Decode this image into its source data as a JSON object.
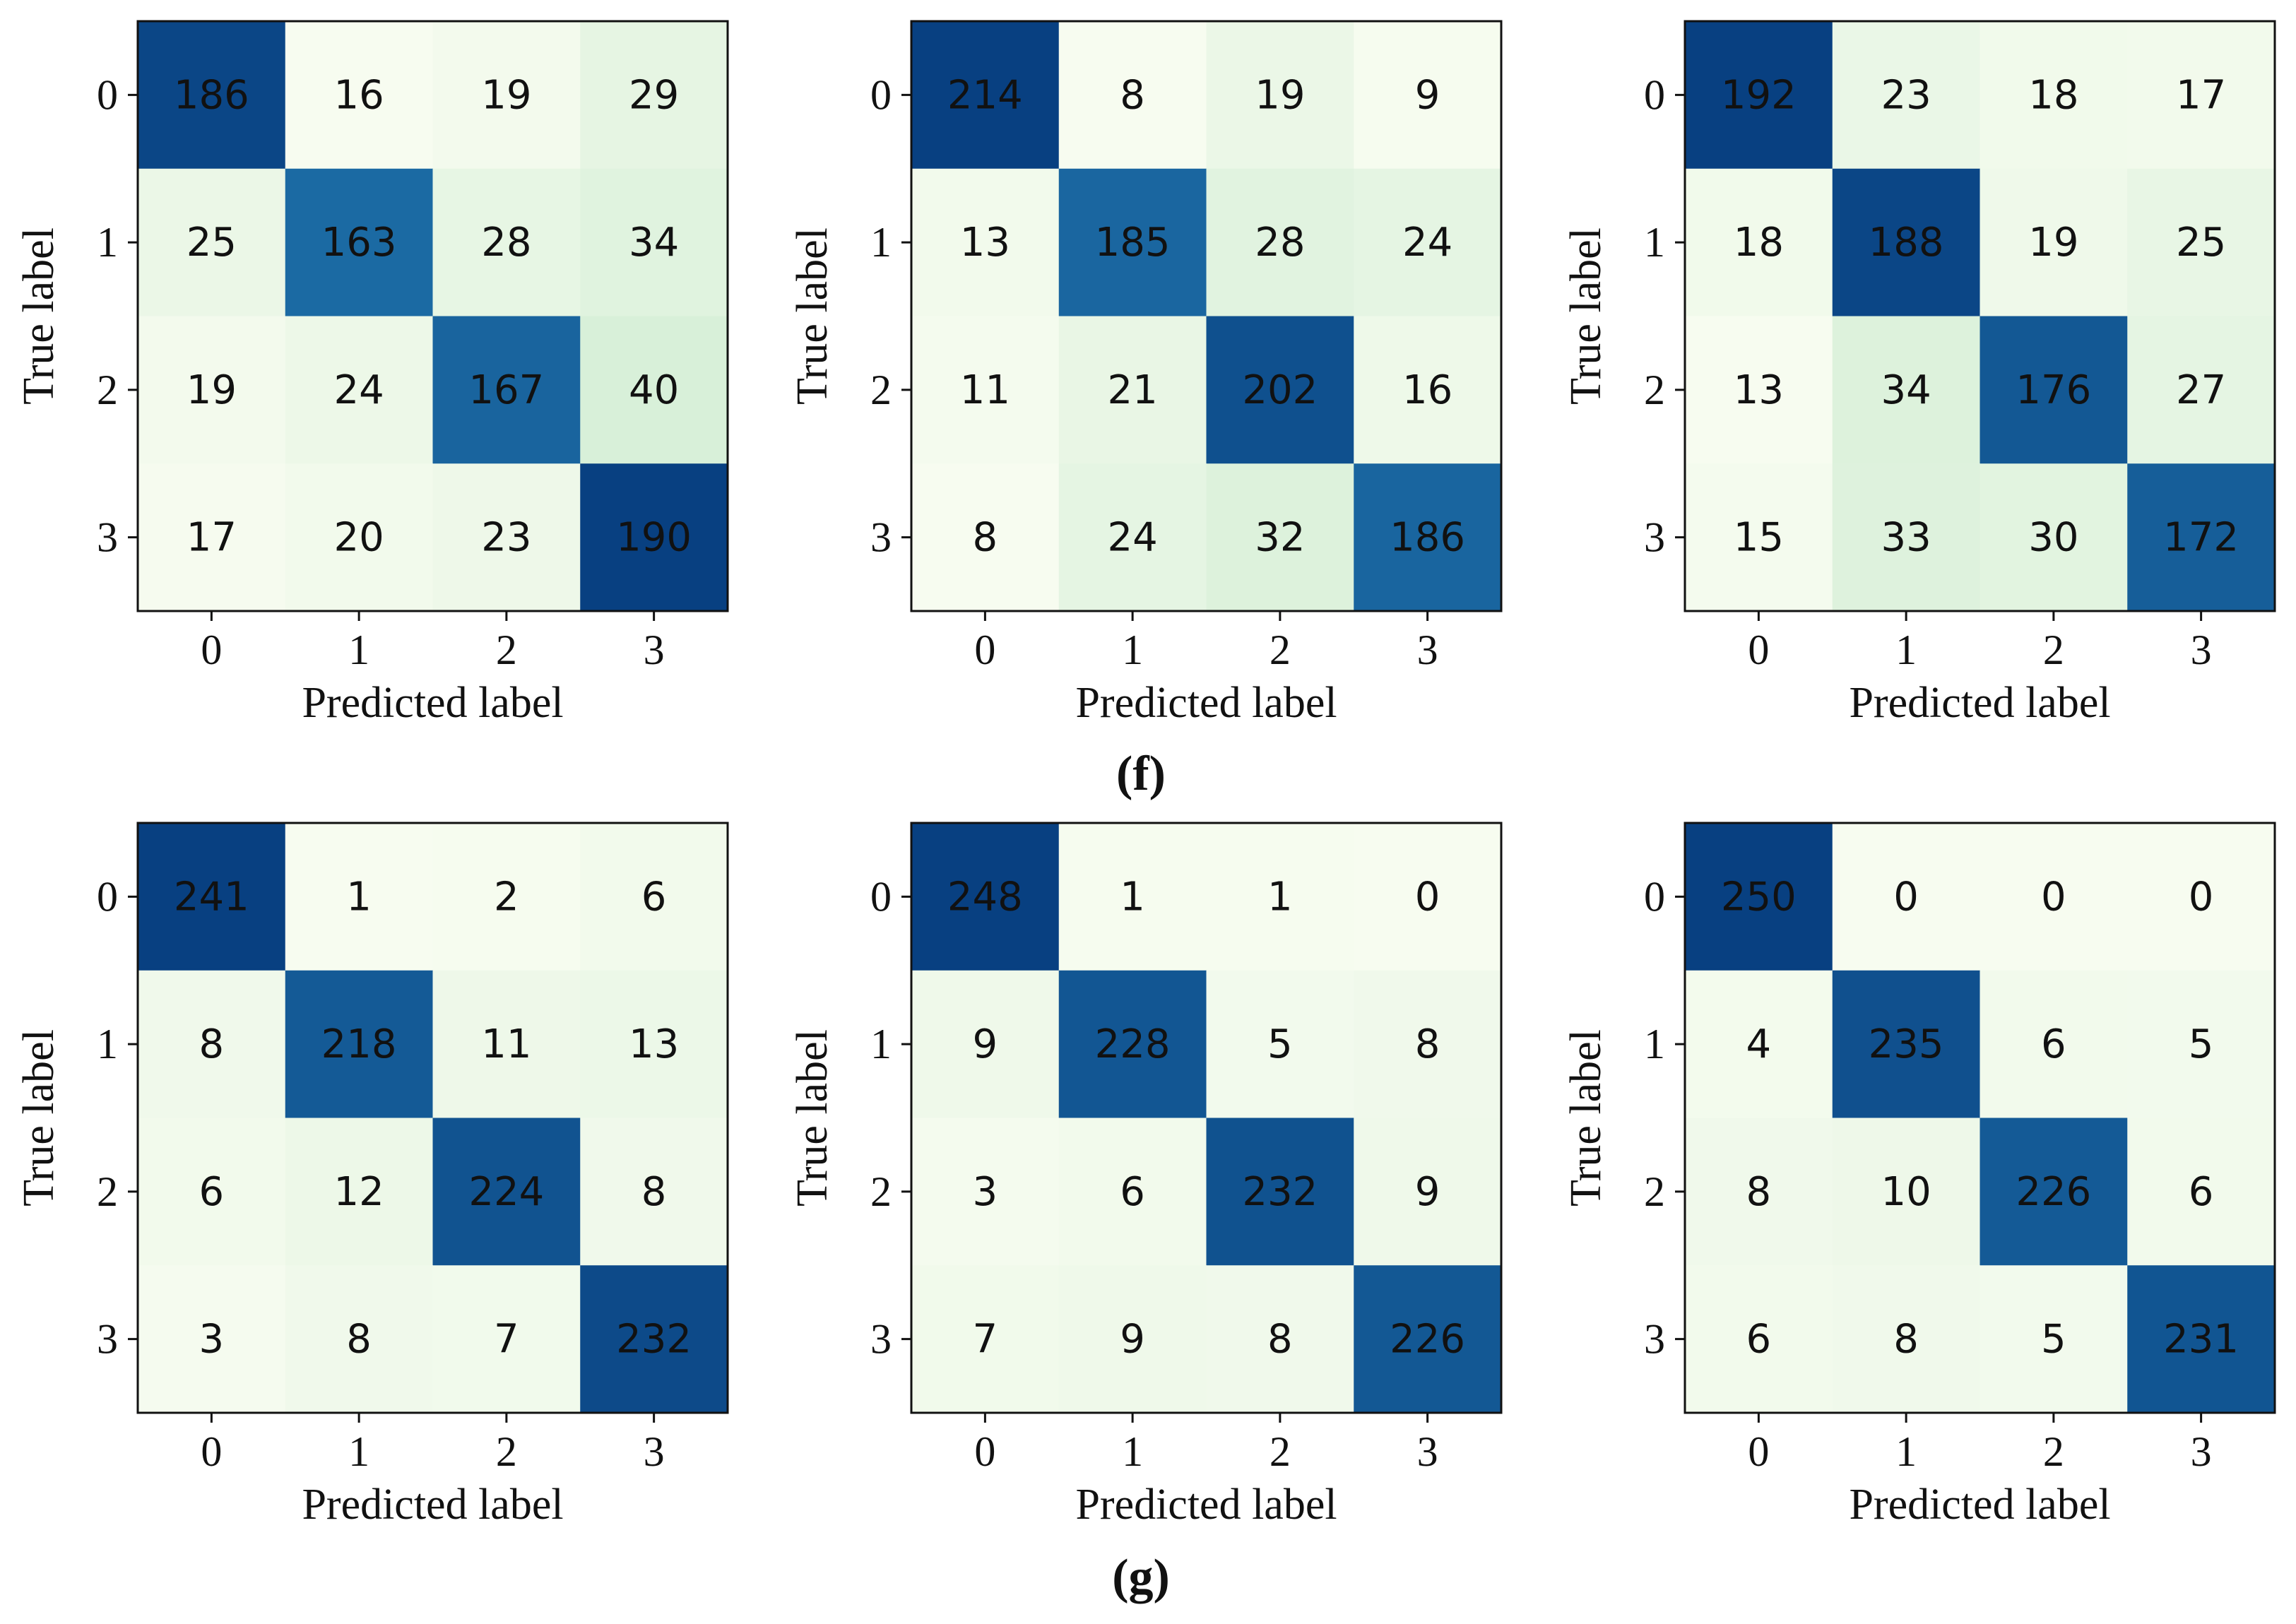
{
  "colors": {
    "low": "#f7fcf0",
    "mid": "#a8ddb5",
    "high": "#2b8cbe",
    "max": "#084081",
    "text": "#111111"
  },
  "captions": [
    "(f)",
    "(g)"
  ],
  "chart_data": [
    {
      "type": "heatmap",
      "row": 0,
      "col": 0,
      "title": "",
      "xlabel": "Predicted label",
      "ylabel": "True label",
      "x_ticks": [
        "0",
        "1",
        "2",
        "3"
      ],
      "y_ticks": [
        "0",
        "1",
        "2",
        "3"
      ],
      "matrix": [
        [
          186,
          16,
          19,
          29
        ],
        [
          25,
          163,
          28,
          34
        ],
        [
          19,
          24,
          167,
          40
        ],
        [
          17,
          20,
          23,
          190
        ]
      ]
    },
    {
      "type": "heatmap",
      "row": 0,
      "col": 1,
      "title": "",
      "xlabel": "Predicted label",
      "ylabel": "True label",
      "x_ticks": [
        "0",
        "1",
        "2",
        "3"
      ],
      "y_ticks": [
        "0",
        "1",
        "2",
        "3"
      ],
      "matrix": [
        [
          214,
          8,
          19,
          9
        ],
        [
          13,
          185,
          28,
          24
        ],
        [
          11,
          21,
          202,
          16
        ],
        [
          8,
          24,
          32,
          186
        ]
      ]
    },
    {
      "type": "heatmap",
      "row": 0,
      "col": 2,
      "title": "",
      "xlabel": "Predicted label",
      "ylabel": "True label",
      "x_ticks": [
        "0",
        "1",
        "2",
        "3"
      ],
      "y_ticks": [
        "0",
        "1",
        "2",
        "3"
      ],
      "matrix": [
        [
          192,
          23,
          18,
          17
        ],
        [
          18,
          188,
          19,
          25
        ],
        [
          13,
          34,
          176,
          27
        ],
        [
          15,
          33,
          30,
          172
        ]
      ]
    },
    {
      "type": "heatmap",
      "row": 1,
      "col": 0,
      "title": "",
      "xlabel": "Predicted label",
      "ylabel": "True label",
      "x_ticks": [
        "0",
        "1",
        "2",
        "3"
      ],
      "y_ticks": [
        "0",
        "1",
        "2",
        "3"
      ],
      "matrix": [
        [
          241,
          1,
          2,
          6
        ],
        [
          8,
          218,
          11,
          13
        ],
        [
          6,
          12,
          224,
          8
        ],
        [
          3,
          8,
          7,
          232
        ]
      ]
    },
    {
      "type": "heatmap",
      "row": 1,
      "col": 1,
      "title": "",
      "xlabel": "Predicted label",
      "ylabel": "True label",
      "x_ticks": [
        "0",
        "1",
        "2",
        "3"
      ],
      "y_ticks": [
        "0",
        "1",
        "2",
        "3"
      ],
      "matrix": [
        [
          248,
          1,
          1,
          0
        ],
        [
          9,
          228,
          5,
          8
        ],
        [
          3,
          6,
          232,
          9
        ],
        [
          7,
          9,
          8,
          226
        ]
      ]
    },
    {
      "type": "heatmap",
      "row": 1,
      "col": 2,
      "title": "",
      "xlabel": "Predicted label",
      "ylabel": "True label",
      "x_ticks": [
        "0",
        "1",
        "2",
        "3"
      ],
      "y_ticks": [
        "0",
        "1",
        "2",
        "3"
      ],
      "matrix": [
        [
          250,
          0,
          0,
          0
        ],
        [
          4,
          235,
          6,
          5
        ],
        [
          8,
          10,
          226,
          6
        ],
        [
          6,
          8,
          5,
          231
        ]
      ]
    }
  ]
}
